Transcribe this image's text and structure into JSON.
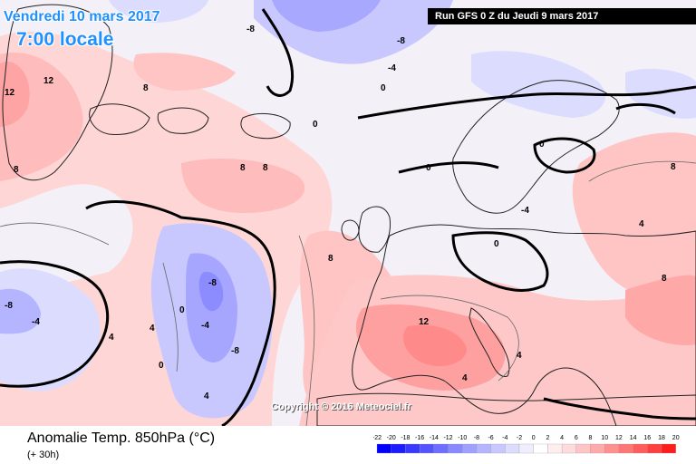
{
  "header": {
    "date": "Vendredi 10 mars 2017",
    "time": "7:00 locale",
    "run": "Run GFS 0 Z du Jeudi 9 mars 2017"
  },
  "footer": {
    "title": "Anomalie Temp. 850hPa (°C)",
    "lead": "(+ 30h)",
    "copyright": "Copyright © 2016 Meteociel.fr"
  },
  "colorscale": {
    "ticks": [
      "-22",
      "-20",
      "-18",
      "-16",
      "-14",
      "-12",
      "-10",
      "-8",
      "-6",
      "-4",
      "-2",
      "0",
      "2",
      "4",
      "6",
      "8",
      "10",
      "12",
      "14",
      "16",
      "18",
      "20"
    ],
    "colors": [
      "#0000ff",
      "#1c1cff",
      "#3838ff",
      "#5454ff",
      "#6e6eff",
      "#8888ff",
      "#a0a0ff",
      "#b4b4ff",
      "#c8c8ff",
      "#dcdcff",
      "#eeeeff",
      "#ffffff",
      "#ffeeee",
      "#ffdcdc",
      "#ffc4c4",
      "#ffaaaa",
      "#ff9090",
      "#ff7676",
      "#ff5c5c",
      "#ff3e3e",
      "#ff1c1c"
    ]
  },
  "contour_labels": [
    "12",
    "12",
    "12",
    "8",
    "8",
    "8",
    "8",
    "8",
    "8",
    "8",
    "4",
    "4",
    "4",
    "4",
    "4",
    "4",
    "0",
    "0",
    "0",
    "0",
    "0",
    "0",
    "0",
    "-4",
    "-4",
    "-4",
    "-4",
    "-8",
    "-8",
    "-8",
    "-8",
    "-8"
  ]
}
